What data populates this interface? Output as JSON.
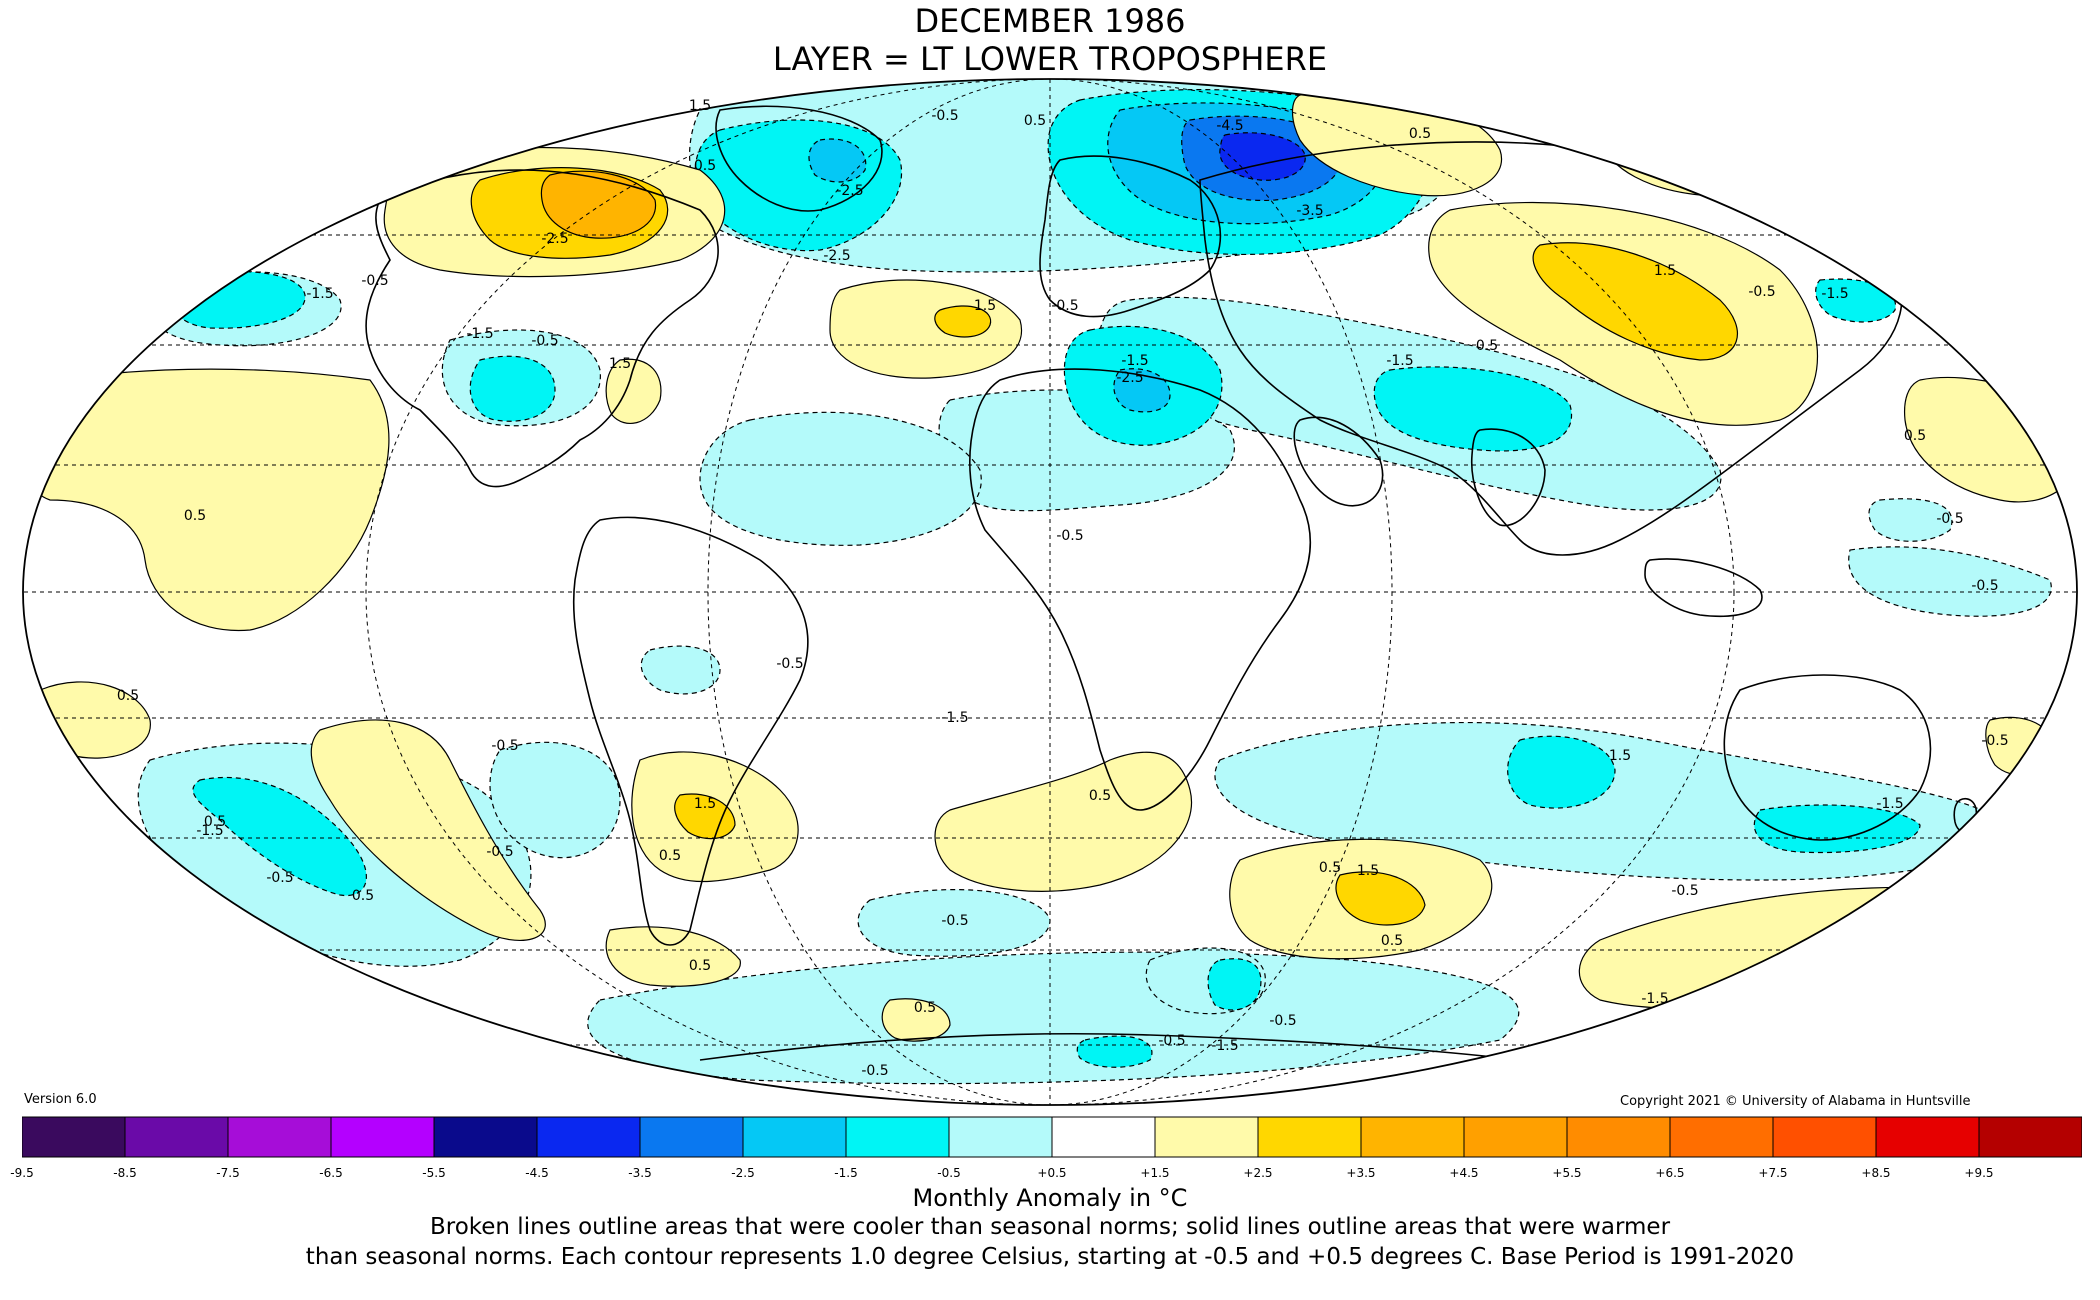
{
  "title": {
    "line1": "DECEMBER 1986",
    "line2": "LAYER = LT LOWER TROPOSPHERE"
  },
  "version": "Version 6.0",
  "copyright": "Copyright 2021 © University of Alabama in Huntsville",
  "colorbar": {
    "title": "Monthly Anomaly in °C",
    "colors": [
      "#3a0a5e",
      "#6a0aa8",
      "#a60dd8",
      "#b400ff",
      "#0a0a8c",
      "#0a28f0",
      "#0a78f0",
      "#05c8f5",
      "#00f5f5",
      "#b4fafa",
      "#ffffff",
      "#fffaaa",
      "#ffd700",
      "#ffb400",
      "#ffa000",
      "#ff8c00",
      "#ff6e00",
      "#ff5000",
      "#e60000",
      "#b40000"
    ],
    "ticks": [
      "-9.5",
      "-8.5",
      "-7.5",
      "-6.5",
      "-5.5",
      "-4.5",
      "-3.5",
      "-2.5",
      "-1.5",
      "-0.5",
      "+0.5",
      "+1.5",
      "+2.5",
      "+3.5",
      "+4.5",
      "+5.5",
      "+6.5",
      "+7.5",
      "+8.5",
      "+9.5"
    ]
  },
  "notes": {
    "line1": "Broken lines outline areas that were cooler than seasonal norms; solid lines outline areas that were warmer",
    "line2": "than seasonal norms. Each contour represents 1.0 degree Celsius, starting at -0.5 and +0.5 degrees C. Base Period is 1991-2020"
  },
  "map": {
    "colors": {
      "cool1": "#b4fafa",
      "cool2": "#00f5f5",
      "cool3": "#05c8f5",
      "cool4": "#0a78f0",
      "cool5": "#0a28f0",
      "warm1": "#fffaaa",
      "warm2": "#ffd700",
      "warm3": "#ffb400"
    },
    "contour_labels": [
      "1.5",
      "-0.5",
      "0.5",
      "-2.5",
      "-4.5",
      "-3.5",
      "0.5",
      "-2.5",
      "-1.5",
      "-0.5",
      "-1.5",
      "1.5",
      "-0.5",
      "1.5",
      "-2.5",
      "-0.5",
      "-1.5",
      "0.5",
      "1.5",
      "-0.5",
      "-1.5",
      "-1.5",
      "0.5",
      "0.5",
      "-0.5",
      "-0.5",
      "-0.5",
      "-1.5",
      "-0.5",
      "0.5",
      "1.5",
      "0.5",
      "0.5",
      "-1.5",
      "-0.5",
      "0.5",
      "0.5",
      "1.5",
      "0.5",
      "-0.5",
      "1.5",
      "-0.5",
      "-0.5",
      "0.5",
      "0.5",
      "-1.5",
      "-0.5",
      "-1.5",
      "-0.5",
      "-1.5",
      "-0.5",
      "-0.5",
      "0.5",
      "-2.5",
      "0.5",
      "-0.5"
    ]
  }
}
